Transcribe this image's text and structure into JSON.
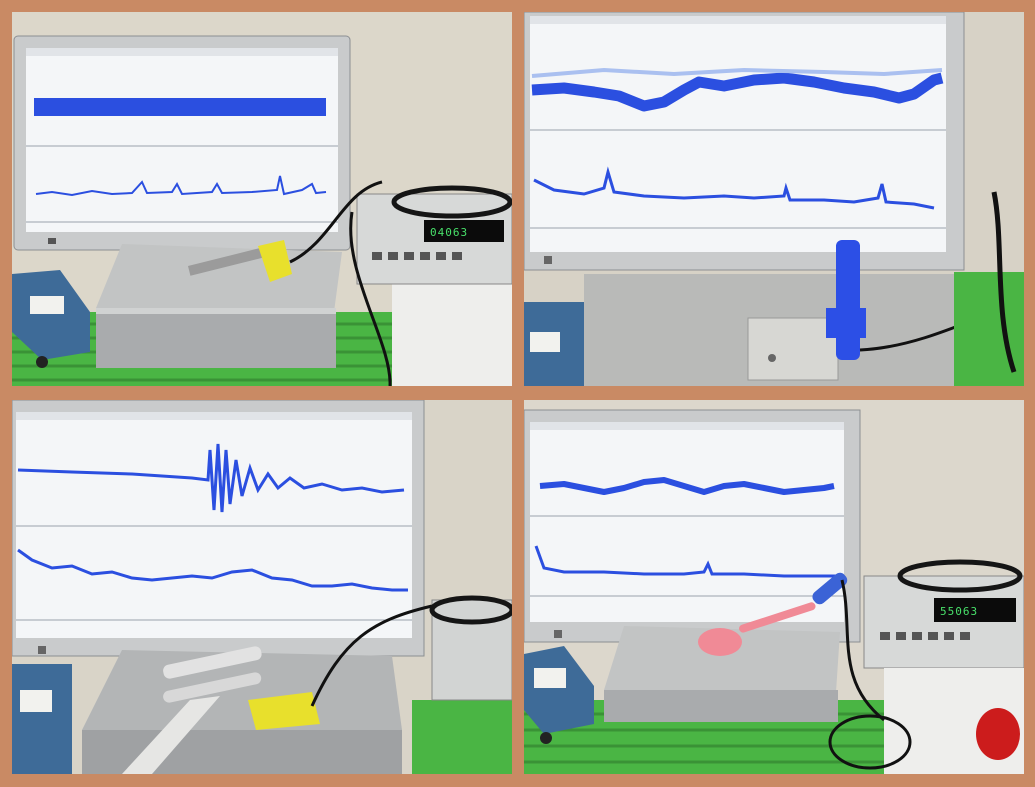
{
  "panels": [
    {
      "name": "top-left",
      "meter_reading": "04063"
    },
    {
      "name": "top-right",
      "meter_reading": ""
    },
    {
      "name": "bottom-left",
      "meter_reading": ""
    },
    {
      "name": "bottom-right",
      "meter_reading": "55063"
    }
  ],
  "colors": {
    "frame": "#c98a64",
    "signal": "#2b4fe0",
    "green_mat": "#4ab544",
    "screen": "#f4f6f8"
  }
}
